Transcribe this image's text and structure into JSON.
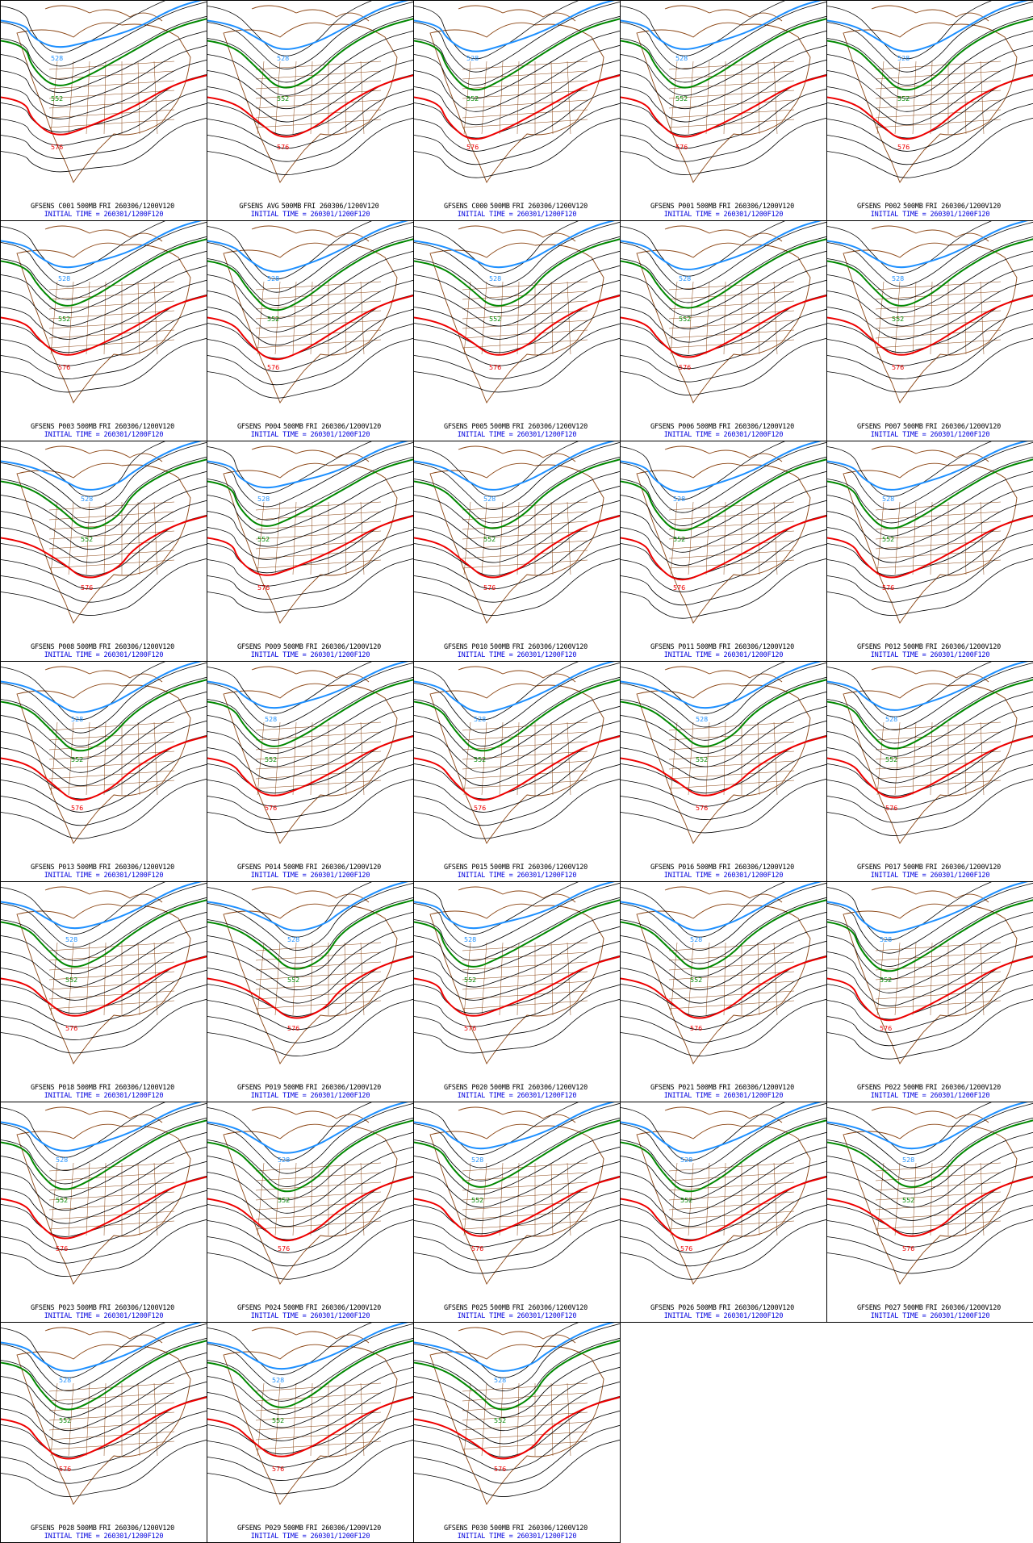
{
  "product": {
    "level": "500MB",
    "valid": "FRI 260306/1200V120",
    "initial_prefix": "INITIAL TIME =",
    "initial": "260301/1200F120"
  },
  "contour_labels": {
    "low": "552",
    "high": "576",
    "blue": "528"
  },
  "colors": {
    "contour": "#000000",
    "blue_contour": "#1e90ff",
    "green_contour": "#008800",
    "red_contour": "#ee0000",
    "map_outline": "#8b4513",
    "caption_blue": "#0000dd"
  },
  "panels": [
    {
      "member": "GFSENS C001"
    },
    {
      "member": "GFSENS AVG"
    },
    {
      "member": "GFSENS C000"
    },
    {
      "member": "GFSENS P001"
    },
    {
      "member": "GFSENS P002"
    },
    {
      "member": "GFSENS P003"
    },
    {
      "member": "GFSENS P004"
    },
    {
      "member": "GFSENS P005"
    },
    {
      "member": "GFSENS P006"
    },
    {
      "member": "GFSENS P007"
    },
    {
      "member": "GFSENS P008"
    },
    {
      "member": "GFSENS P009"
    },
    {
      "member": "GFSENS P010"
    },
    {
      "member": "GFSENS P011"
    },
    {
      "member": "GFSENS P012"
    },
    {
      "member": "GFSENS P013"
    },
    {
      "member": "GFSENS P014"
    },
    {
      "member": "GFSENS P015"
    },
    {
      "member": "GFSENS P016"
    },
    {
      "member": "GFSENS P017"
    },
    {
      "member": "GFSENS P018"
    },
    {
      "member": "GFSENS P019"
    },
    {
      "member": "GFSENS P020"
    },
    {
      "member": "GFSENS P021"
    },
    {
      "member": "GFSENS P022"
    },
    {
      "member": "GFSENS P023"
    },
    {
      "member": "GFSENS P024"
    },
    {
      "member": "GFSENS P025"
    },
    {
      "member": "GFSENS P026"
    },
    {
      "member": "GFSENS P027"
    },
    {
      "member": "GFSENS P028"
    },
    {
      "member": "GFSENS P029"
    },
    {
      "member": "GFSENS P030"
    }
  ]
}
